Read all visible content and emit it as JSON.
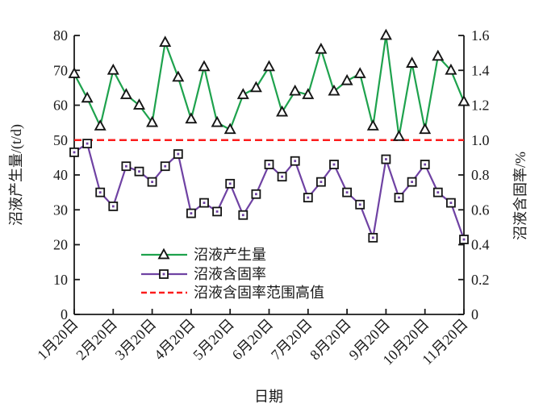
{
  "figure": {
    "background": "#ffffff"
  },
  "chart_data": {
    "type": "line",
    "title": "",
    "xlabel": "日期",
    "ylabel_left": "沼液产生量/(t/d)",
    "ylabel_right": "沼液含固率/%",
    "x_tick_labels": [
      "1月20日",
      "2月20日",
      "3月20日",
      "4月20日",
      "5月20日",
      "6月20日",
      "7月20日",
      "8月20日",
      "9月20日",
      "10月20日",
      "11月20日"
    ],
    "x_tick_indices": [
      0,
      3,
      6,
      9,
      12,
      15,
      18,
      21,
      24,
      27,
      30
    ],
    "n_points": 31,
    "ylim_left": [
      0,
      80
    ],
    "yticks_left": [
      0,
      10,
      20,
      30,
      40,
      50,
      60,
      70,
      80
    ],
    "ylim_right": [
      0,
      1.6
    ],
    "yticks_right": [
      "0",
      "0.2",
      "0.4",
      "0.6",
      "0.8",
      "1.0",
      "1.2",
      "1.4",
      "1.6"
    ],
    "grid": false,
    "legend_position": "inside-lower-left",
    "series": [
      {
        "name": "沼液产生量",
        "axis": "left",
        "color": "#1ea24d",
        "marker": "triangle",
        "values": [
          69,
          62,
          54,
          70,
          63,
          60,
          55,
          78,
          68,
          56,
          71,
          55,
          53,
          63,
          65,
          71,
          58,
          64,
          63,
          76,
          64,
          67,
          69,
          54,
          80,
          51,
          72,
          53,
          74,
          70,
          61
        ]
      },
      {
        "name": "沼液含固率",
        "axis": "right",
        "color": "#6f42a3",
        "marker": "square",
        "values": [
          0.93,
          0.98,
          0.7,
          0.62,
          0.85,
          0.82,
          0.76,
          0.85,
          0.92,
          0.58,
          0.64,
          0.59,
          0.75,
          0.57,
          0.69,
          0.86,
          0.79,
          0.88,
          0.67,
          0.76,
          0.86,
          0.7,
          0.63,
          0.44,
          0.89,
          0.67,
          0.76,
          0.86,
          0.7,
          0.64,
          0.43
        ]
      }
    ],
    "threshold_line": {
      "name": "沼液含固率范围高值",
      "axis": "right",
      "value": 1.0,
      "color": "#fb1c1c",
      "style": "dashed"
    },
    "legend": [
      {
        "label": "沼液产生量",
        "swatch": "line-triangle",
        "color": "#1ea24d"
      },
      {
        "label": "沼液含固率",
        "swatch": "line-square",
        "color": "#6f42a3"
      },
      {
        "label": "沼液含固率范围高值",
        "swatch": "dashed-line",
        "color": "#fb1c1c"
      }
    ],
    "marker_edge_color": "#151515",
    "marker_fill_color": "#ffffff",
    "axis_color": "#1a1a1a",
    "text_color": "#1a1a1a"
  }
}
